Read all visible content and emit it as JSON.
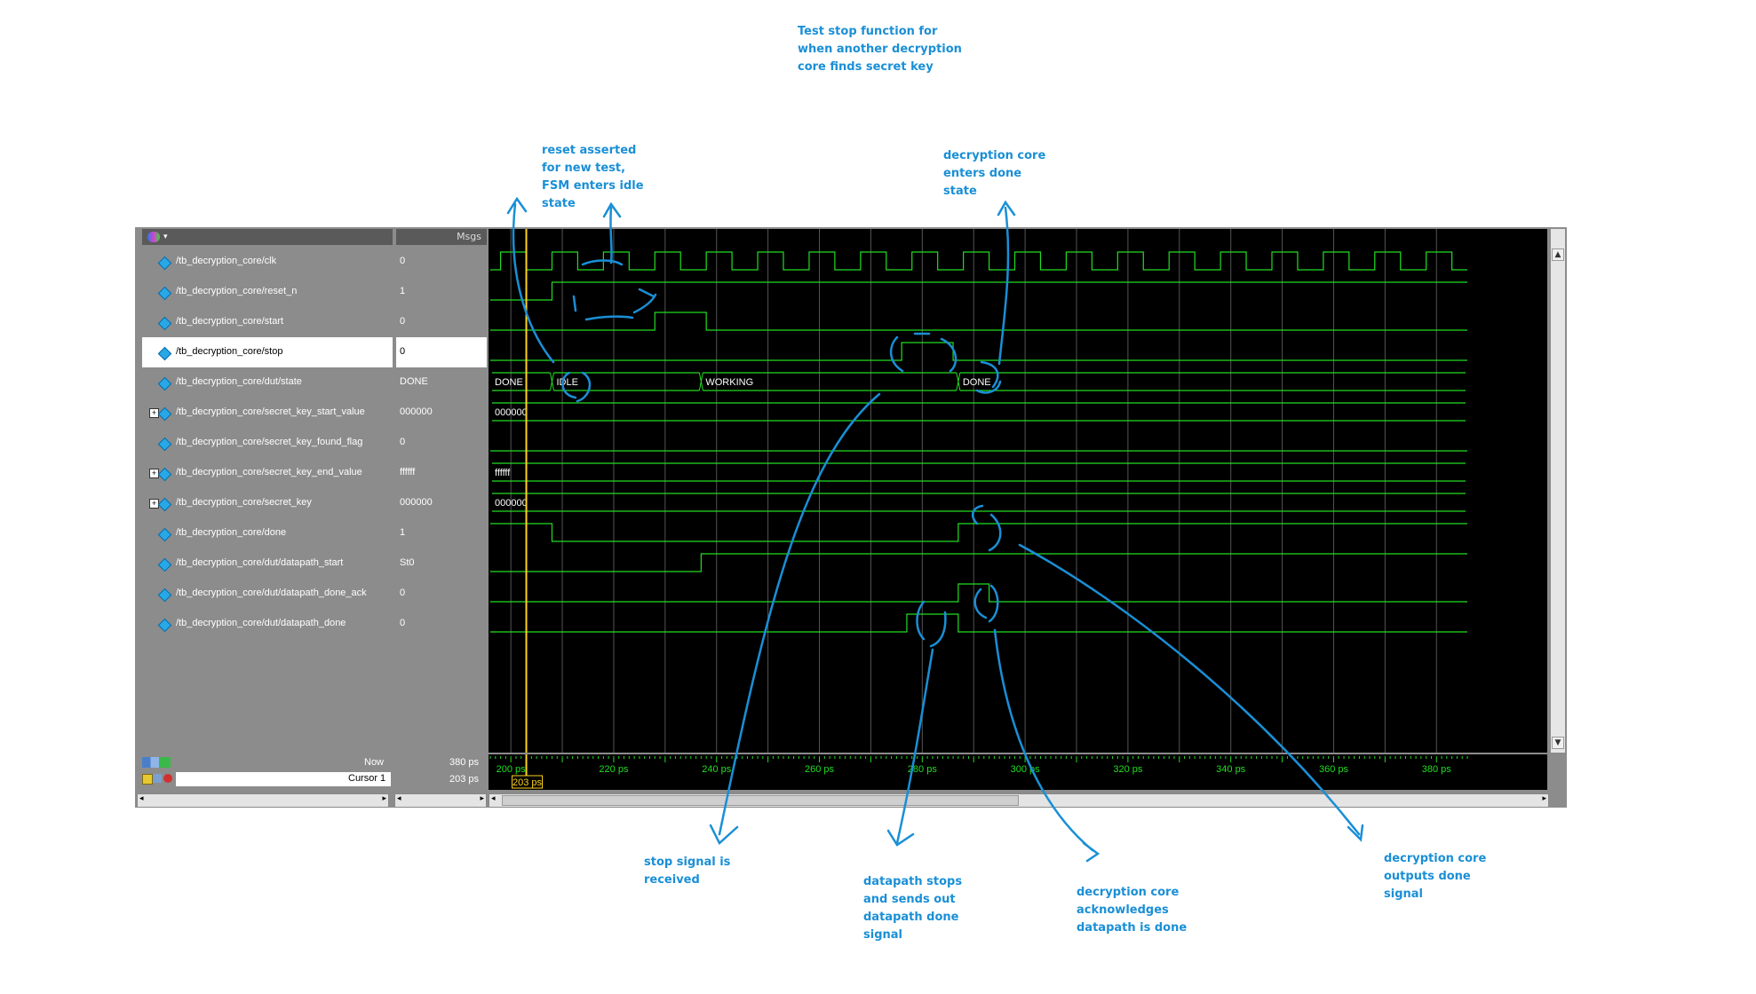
{
  "annotations": {
    "top": [
      "Test stop function for",
      "when another decryption",
      "core finds secret key"
    ],
    "reset": [
      "reset asserted",
      "for new test,",
      "FSM enters idle",
      "state"
    ],
    "done_state": [
      "decryption core",
      "enters done",
      "state"
    ],
    "stop_received": [
      "stop signal is",
      "received"
    ],
    "datapath_stops": [
      "datapath stops",
      "and sends out",
      "datapath done",
      "signal"
    ],
    "ack": [
      "decryption core",
      "acknowledges",
      "datapath is done"
    ],
    "outputs_done": [
      "decryption core",
      "outputs done",
      "signal"
    ]
  },
  "header": {
    "msgs_label": "Msgs"
  },
  "signals": [
    {
      "name": "/tb_decryption_core/clk",
      "value": "0",
      "expandable": false
    },
    {
      "name": "/tb_decryption_core/reset_n",
      "value": "1",
      "expandable": false
    },
    {
      "name": "/tb_decryption_core/start",
      "value": "0",
      "expandable": false
    },
    {
      "name": "/tb_decryption_core/stop",
      "value": "0",
      "expandable": false,
      "selected": true
    },
    {
      "name": "/tb_decryption_core/dut/state",
      "value": "DONE",
      "expandable": false
    },
    {
      "name": "/tb_decryption_core/secret_key_start_value",
      "value": "000000",
      "expandable": true
    },
    {
      "name": "/tb_decryption_core/secret_key_found_flag",
      "value": "0",
      "expandable": false
    },
    {
      "name": "/tb_decryption_core/secret_key_end_value",
      "value": "ffffff",
      "expandable": true
    },
    {
      "name": "/tb_decryption_core/secret_key",
      "value": "000000",
      "expandable": true
    },
    {
      "name": "/tb_decryption_core/done",
      "value": "1",
      "expandable": false
    },
    {
      "name": "/tb_decryption_core/dut/datapath_start",
      "value": "St0",
      "expandable": false
    },
    {
      "name": "/tb_decryption_core/dut/datapath_done_ack",
      "value": "0",
      "expandable": false
    },
    {
      "name": "/tb_decryption_core/dut/datapath_done",
      "value": "0",
      "expandable": false
    }
  ],
  "bus_labels": {
    "state": [
      "DONE",
      "IDLE",
      "WORKING",
      "DONE"
    ],
    "secret_key_start_value": "000000",
    "secret_key_end_value": "ffffff",
    "secret_key": "000000"
  },
  "footer": {
    "now_label": "Now",
    "now_value": "380 ps",
    "cursor_label": "Cursor 1",
    "cursor_value": "203 ps",
    "cursor_marker": "203 ps",
    "time_ticks": [
      "200 ps",
      "220 ps",
      "240 ps",
      "260 ps",
      "280 ps",
      "300 ps",
      "320 ps",
      "340 ps",
      "360 ps",
      "380 ps"
    ]
  },
  "timeline": {
    "start_ps": 196,
    "end_ps": 386,
    "cursor_ps": 203,
    "reset_deassert_ps": 208,
    "start_pulse_ps": [
      228,
      238
    ],
    "idle_ps": 208,
    "working_ps": 237,
    "done_ps": 287,
    "stop_pulse_ps": [
      276,
      286
    ],
    "datapath_start_rise_ps": [
      237
    ],
    "datapath_done_pulse_ps": [
      277,
      287
    ],
    "datapath_done_ack_pulse_ps": [
      287,
      293
    ],
    "done_drop_ps": 208,
    "done_rise_ps": 287,
    "colors": {
      "wave": "#22dd22",
      "cursor": "#ffd21a",
      "annot": "#1a8fd6"
    }
  }
}
